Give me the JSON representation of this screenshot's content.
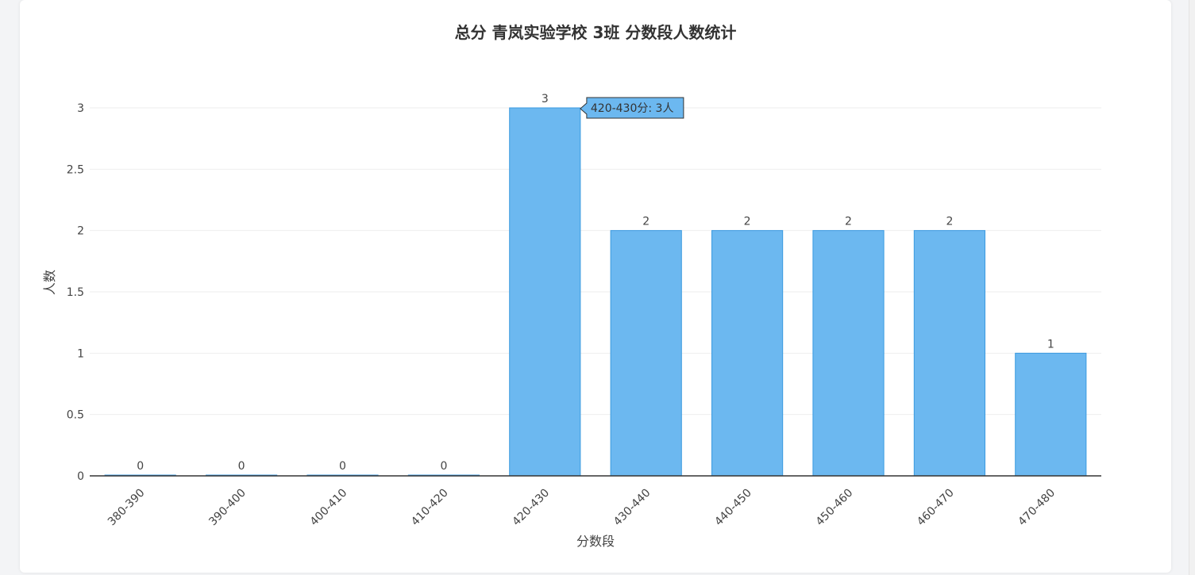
{
  "chart_data": {
    "type": "bar",
    "title": "总分 青岚实验学校 3班 分数段人数统计",
    "xlabel": "分数段",
    "ylabel": "人数",
    "categories": [
      "380-390",
      "390-400",
      "400-410",
      "410-420",
      "420-430",
      "430-440",
      "440-450",
      "450-460",
      "460-470",
      "470-480"
    ],
    "values": [
      0,
      0,
      0,
      0,
      3,
      2,
      2,
      2,
      2,
      1
    ],
    "ylim": [
      0,
      3
    ],
    "yticks": [
      "0",
      "0.5",
      "1",
      "1.5",
      "2",
      "2.5",
      "3"
    ],
    "grid": true,
    "bar_color": "#6cb8f0",
    "bar_border_color": "#3a9ae0",
    "tooltip": {
      "category_index": 4,
      "text": "420-430分: 3人"
    }
  }
}
